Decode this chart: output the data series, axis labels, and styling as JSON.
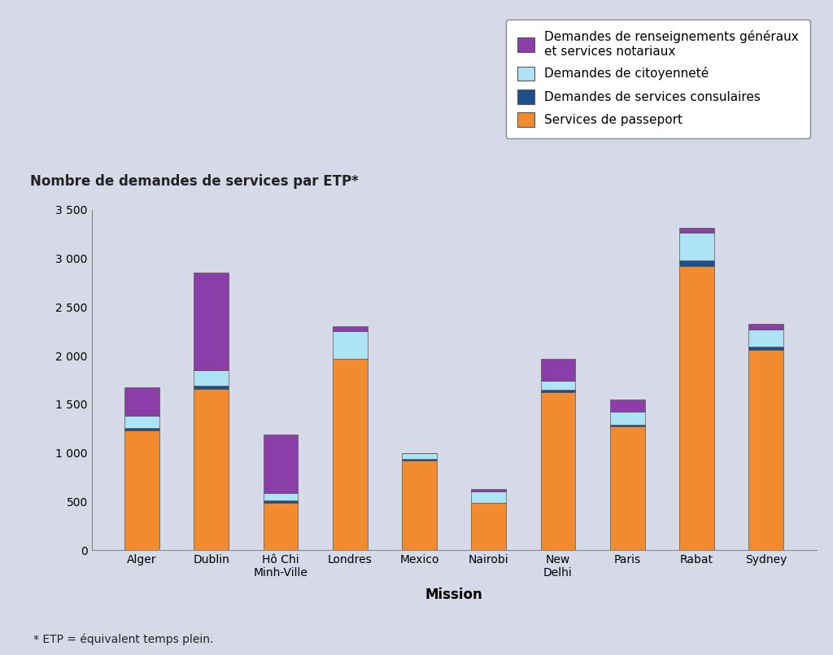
{
  "categories": [
    "Alger",
    "Dublin",
    "Hô Chi\nMinh-Ville",
    "Londres",
    "Mexico",
    "Nairobi",
    "New\nDelhi",
    "Paris",
    "Rabat",
    "Sydney"
  ],
  "passport": [
    1230,
    1660,
    490,
    1970,
    920,
    490,
    1620,
    1270,
    2920,
    2060
  ],
  "consulaires": [
    30,
    30,
    20,
    0,
    20,
    0,
    30,
    20,
    60,
    30
  ],
  "citoyennete": [
    120,
    160,
    80,
    280,
    60,
    110,
    90,
    130,
    280,
    180
  ],
  "renseignements": [
    290,
    1000,
    600,
    50,
    0,
    30,
    230,
    130,
    50,
    60
  ],
  "colors": {
    "passport": "#F28B30",
    "consulaires": "#1F4E8C",
    "citoyennete": "#ADE3F5",
    "renseignements": "#8B3EA8"
  },
  "legend_labels": [
    "Demandes de renseignements généraux\net services notariaux",
    "Demandes de citoyenneté",
    "Demandes de services consulaires",
    "Services de passeport"
  ],
  "ylabel": "Nombre de demandes de services par ETP*",
  "xlabel": "Mission",
  "ylim": [
    0,
    3500
  ],
  "yticks": [
    0,
    500,
    1000,
    1500,
    2000,
    2500,
    3000,
    3500
  ],
  "ytick_labels": [
    "0",
    "500",
    "1 000",
    "1 500",
    "2 000",
    "2 500",
    "3 000",
    "3 500"
  ],
  "footnote": "* ETP = équivalent temps plein.",
  "background_color": "#D6DAE8",
  "bar_edge_color": "#555555",
  "title_fontsize": 12,
  "axis_fontsize": 12,
  "tick_fontsize": 10,
  "legend_fontsize": 11
}
